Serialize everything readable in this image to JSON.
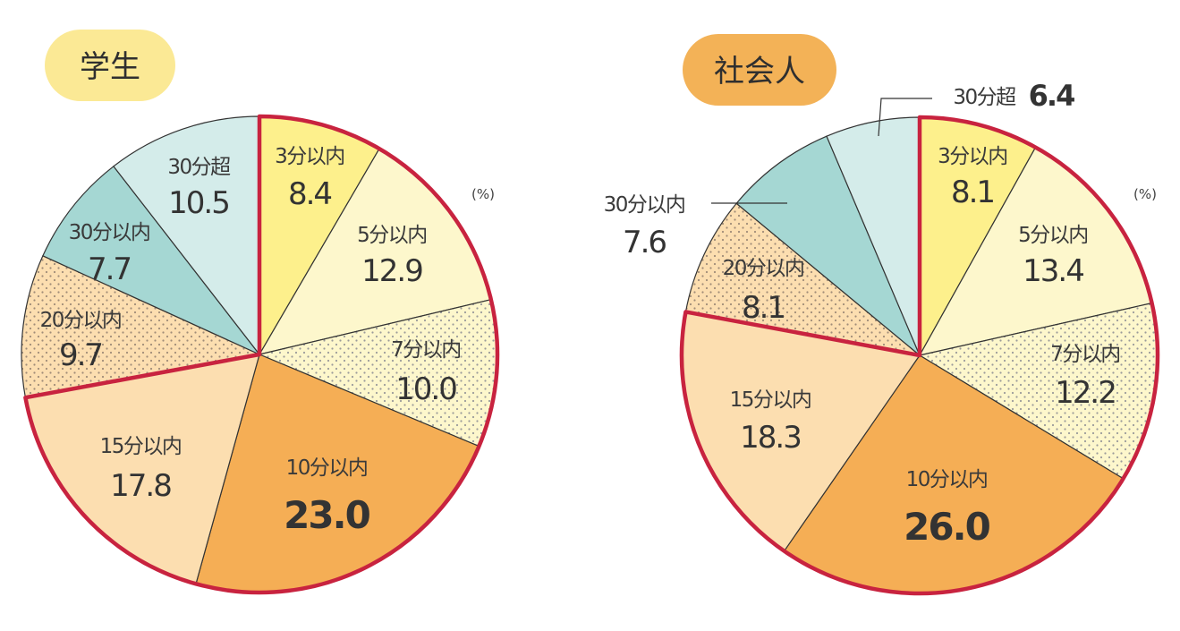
{
  "chart_data": [
    {
      "type": "pie",
      "title": "学生",
      "unit": "(%)",
      "slices": [
        {
          "label": "3分以内",
          "value": 8.4,
          "value_text": "8.4",
          "fill": "#fdf08c"
        },
        {
          "label": "5分以内",
          "value": 12.9,
          "value_text": "12.9",
          "fill": "#fdf7cc"
        },
        {
          "label": "7分以内",
          "value": 10.0,
          "value_text": "10.0",
          "fill": "#fdf7cc",
          "pattern": "dots"
        },
        {
          "label": "10分以内",
          "value": 23.0,
          "value_text": "23.0",
          "fill": "#f5ae55"
        },
        {
          "label": "15分以内",
          "value": 17.8,
          "value_text": "17.8",
          "fill": "#fcdeb0"
        },
        {
          "label": "20分以内",
          "value": 9.7,
          "value_text": "9.7",
          "fill": "#fcdeb0",
          "pattern": "dots"
        },
        {
          "label": "30分以内",
          "value": 7.7,
          "value_text": "7.7",
          "fill": "#a5d7d3"
        },
        {
          "label": "30分超",
          "value": 10.5,
          "value_text": "10.5",
          "fill": "#d4ecea"
        }
      ],
      "highlight_range": [
        "3分以内",
        "15分以内"
      ]
    },
    {
      "type": "pie",
      "title": "社会人",
      "unit": "(%)",
      "slices": [
        {
          "label": "3分以内",
          "value": 8.1,
          "value_text": "8.1",
          "fill": "#fdf08c"
        },
        {
          "label": "5分以内",
          "value": 13.4,
          "value_text": "13.4",
          "fill": "#fdf7cc"
        },
        {
          "label": "7分以内",
          "value": 12.2,
          "value_text": "12.2",
          "fill": "#fdf7cc",
          "pattern": "dots"
        },
        {
          "label": "10分以内",
          "value": 26.0,
          "value_text": "26.0",
          "fill": "#f5ae55"
        },
        {
          "label": "15分以内",
          "value": 18.3,
          "value_text": "18.3",
          "fill": "#fcdeb0"
        },
        {
          "label": "20分以内",
          "value": 8.1,
          "value_text": "8.1",
          "fill": "#fcdeb0",
          "pattern": "dots"
        },
        {
          "label": "30分以内",
          "value": 7.6,
          "value_text": "7.6",
          "fill": "#a5d7d3"
        },
        {
          "label": "30分超",
          "value": 6.4,
          "value_text": "6.4",
          "fill": "#d4ecea"
        }
      ],
      "highlight_range": [
        "3分以内",
        "15分以内"
      ]
    }
  ],
  "colors": {
    "highlight_outline": "#c8233f",
    "slice_border": "#333333",
    "title_badge_student": "#fbe995",
    "title_badge_worker": "#f3b257"
  }
}
